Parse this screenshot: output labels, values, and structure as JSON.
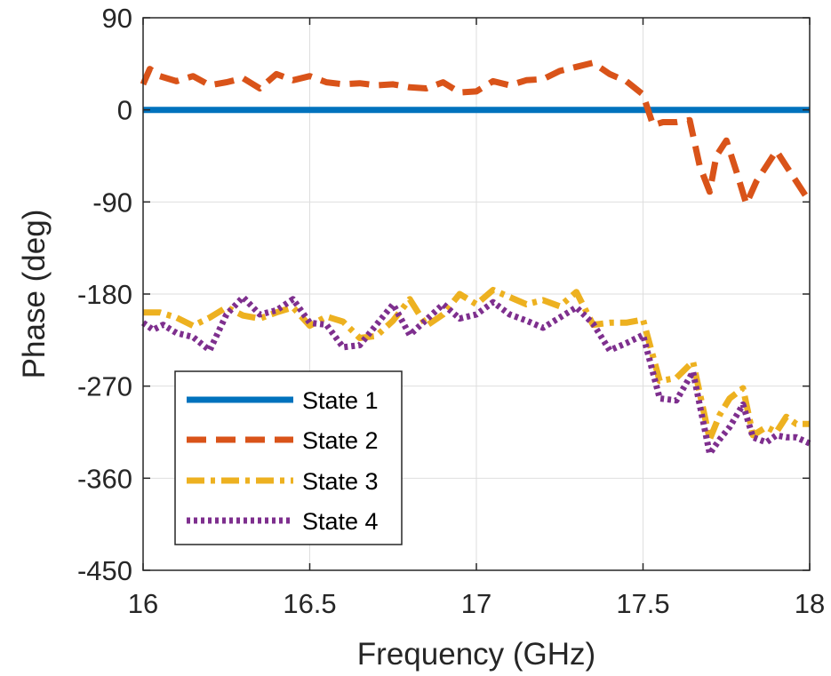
{
  "chart_data": {
    "type": "line",
    "title": "",
    "xlabel": "Frequency (GHz)",
    "ylabel": "Phase (deg)",
    "xlim": [
      16,
      18
    ],
    "ylim": [
      -450,
      90
    ],
    "xticks": [
      16,
      16.5,
      17,
      17.5,
      18
    ],
    "xtick_labels": [
      "16",
      "16.5",
      "17",
      "17.5",
      "18"
    ],
    "yticks": [
      90,
      0,
      -90,
      -180,
      -270,
      -360,
      -450
    ],
    "ytick_labels": [
      "90",
      "0",
      "-90",
      "-180",
      "-270",
      "-360",
      "-450"
    ],
    "grid": true,
    "legend_position": "bottom-left",
    "series": [
      {
        "name": "State 1",
        "color": "#0072BD",
        "style": "solid",
        "x": [
          16,
          18
        ],
        "y": [
          0,
          0
        ]
      },
      {
        "name": "State 2",
        "color": "#D95319",
        "style": "dashed",
        "x": [
          16.0,
          16.02,
          16.05,
          16.1,
          16.15,
          16.2,
          16.25,
          16.3,
          16.35,
          16.4,
          16.45,
          16.5,
          16.55,
          16.6,
          16.65,
          16.7,
          16.75,
          16.8,
          16.85,
          16.9,
          16.95,
          17.0,
          17.05,
          17.1,
          17.15,
          17.2,
          17.25,
          17.3,
          17.35,
          17.4,
          17.45,
          17.5,
          17.53,
          17.56,
          17.6,
          17.64,
          17.67,
          17.7,
          17.72,
          17.75,
          17.78,
          17.81,
          17.84,
          17.87,
          17.9,
          17.93,
          17.96,
          18.0
        ],
        "y": [
          25,
          40,
          33,
          28,
          33,
          24,
          27,
          31,
          21,
          35,
          29,
          33,
          27,
          25,
          26,
          24,
          25,
          22,
          21,
          27,
          17,
          18,
          28,
          24,
          29,
          30,
          38,
          42,
          46,
          35,
          28,
          15,
          -15,
          -12,
          -12,
          -10,
          -55,
          -80,
          -45,
          -30,
          -60,
          -92,
          -70,
          -55,
          -40,
          -55,
          -70,
          -90
        ]
      },
      {
        "name": "State 3",
        "color": "#EDB120",
        "style": "dashdot",
        "x": [
          16.0,
          16.05,
          16.1,
          16.15,
          16.2,
          16.25,
          16.3,
          16.35,
          16.4,
          16.45,
          16.5,
          16.55,
          16.6,
          16.65,
          16.7,
          16.75,
          16.8,
          16.85,
          16.9,
          16.95,
          17.0,
          17.05,
          17.1,
          17.15,
          17.2,
          17.25,
          17.3,
          17.35,
          17.4,
          17.45,
          17.5,
          17.55,
          17.6,
          17.65,
          17.7,
          17.73,
          17.76,
          17.8,
          17.83,
          17.87,
          17.9,
          17.93,
          17.96,
          18.0
        ],
        "y": [
          -198,
          -198,
          -203,
          -211,
          -203,
          -193,
          -201,
          -204,
          -198,
          -193,
          -211,
          -202,
          -207,
          -223,
          -221,
          -206,
          -185,
          -211,
          -200,
          -180,
          -190,
          -176,
          -183,
          -190,
          -186,
          -192,
          -178,
          -210,
          -208,
          -208,
          -205,
          -265,
          -262,
          -246,
          -322,
          -298,
          -282,
          -272,
          -318,
          -310,
          -315,
          -300,
          -307,
          -307
        ]
      },
      {
        "name": "State 4",
        "color": "#7E2F8E",
        "style": "dotted",
        "x": [
          16.0,
          16.03,
          16.06,
          16.1,
          16.15,
          16.2,
          16.25,
          16.3,
          16.35,
          16.4,
          16.45,
          16.5,
          16.55,
          16.6,
          16.65,
          16.7,
          16.75,
          16.8,
          16.85,
          16.9,
          16.95,
          17.0,
          17.05,
          17.1,
          17.15,
          17.2,
          17.25,
          17.3,
          17.35,
          17.4,
          17.45,
          17.5,
          17.55,
          17.6,
          17.65,
          17.7,
          17.73,
          17.76,
          17.8,
          17.83,
          17.87,
          17.9,
          17.93,
          17.96,
          18.0
        ],
        "y": [
          -208,
          -215,
          -210,
          -218,
          -222,
          -235,
          -200,
          -183,
          -200,
          -196,
          -185,
          -208,
          -210,
          -232,
          -230,
          -210,
          -190,
          -220,
          -205,
          -190,
          -204,
          -200,
          -188,
          -200,
          -206,
          -213,
          -203,
          -193,
          -209,
          -235,
          -228,
          -220,
          -282,
          -284,
          -256,
          -336,
          -322,
          -310,
          -288,
          -320,
          -325,
          -318,
          -320,
          -320,
          -326
        ]
      }
    ]
  },
  "legend": {
    "items": [
      "State 1",
      "State 2",
      "State 3",
      "State 4"
    ]
  }
}
